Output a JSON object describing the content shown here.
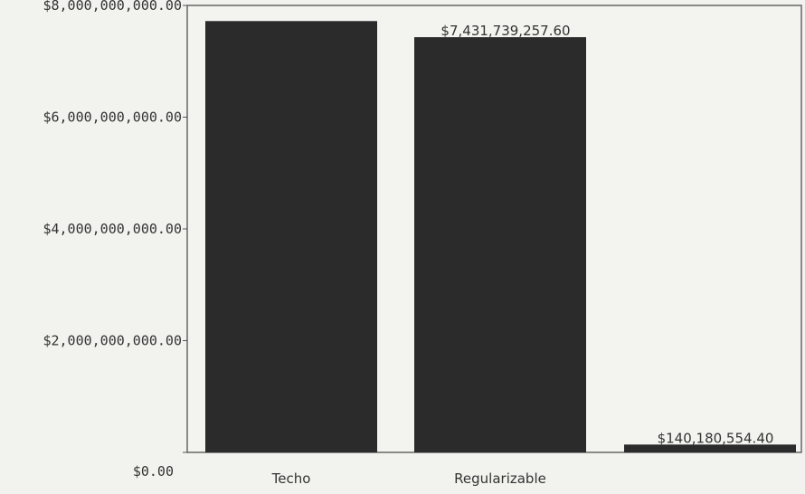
{
  "chart_data": {
    "type": "bar",
    "title": "",
    "xlabel": "",
    "ylabel": "",
    "categories": [
      "Techo",
      "Regularizable",
      ""
    ],
    "values": [
      7720000000,
      7431739257.6,
      140180554.4
    ],
    "data_labels": [
      "",
      "$7,431,739,257.60",
      "$140,180,554.40"
    ],
    "ylim": [
      0,
      8000000000
    ],
    "yticks": [
      0,
      2000000000,
      4000000000,
      6000000000,
      8000000000
    ],
    "ytick_labels": [
      "$0.00",
      "$2,000,000,000.00",
      "$4,000,000,000.00",
      "$6,000,000,000.00",
      "$8,000,000,000.00"
    ],
    "grid": false,
    "legend": "none",
    "colors": {
      "bar": "#2b2b2b",
      "plot_background": "#f3f3f0",
      "axis": "#555555",
      "text": "#333333"
    }
  }
}
